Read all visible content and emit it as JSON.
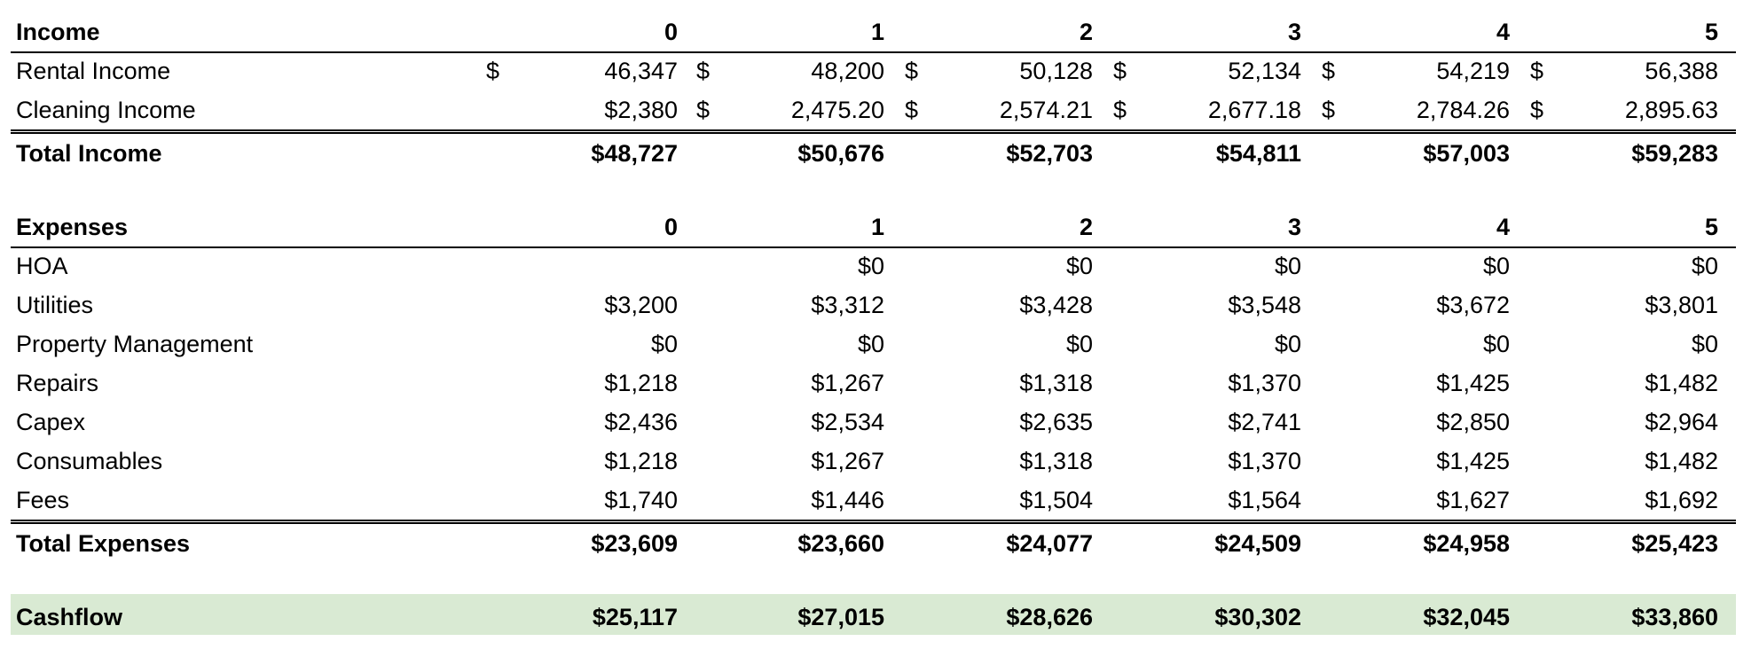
{
  "income": {
    "title": "Income",
    "years": [
      "0",
      "1",
      "2",
      "3",
      "4",
      "5"
    ],
    "rows": [
      {
        "label": "Rental Income",
        "values": [
          {
            "d": "$",
            "v": "46,347"
          },
          {
            "d": "$",
            "v": "48,200"
          },
          {
            "d": "$",
            "v": "50,128"
          },
          {
            "d": "$",
            "v": "52,134"
          },
          {
            "d": "$",
            "v": "54,219"
          },
          {
            "d": "$",
            "v": "56,388"
          }
        ]
      },
      {
        "label": "Cleaning Income",
        "values": [
          {
            "d": "",
            "v": "$2,380"
          },
          {
            "d": "$",
            "v": "2,475.20"
          },
          {
            "d": "$",
            "v": "2,574.21"
          },
          {
            "d": "$",
            "v": "2,677.18"
          },
          {
            "d": "$",
            "v": "2,784.26"
          },
          {
            "d": "$",
            "v": "2,895.63"
          }
        ]
      }
    ],
    "total": {
      "label": "Total Income",
      "values": [
        "$48,727",
        "$50,676",
        "$52,703",
        "$54,811",
        "$57,003",
        "$59,283"
      ]
    }
  },
  "expenses": {
    "title": "Expenses",
    "years": [
      "0",
      "1",
      "2",
      "3",
      "4",
      "5"
    ],
    "rows": [
      {
        "label": "HOA",
        "values": [
          "",
          "$0",
          "$0",
          "$0",
          "$0",
          "$0"
        ]
      },
      {
        "label": "Utilities",
        "values": [
          "$3,200",
          "$3,312",
          "$3,428",
          "$3,548",
          "$3,672",
          "$3,801"
        ]
      },
      {
        "label": "Property Management",
        "values": [
          "$0",
          "$0",
          "$0",
          "$0",
          "$0",
          "$0"
        ]
      },
      {
        "label": "Repairs",
        "values": [
          "$1,218",
          "$1,267",
          "$1,318",
          "$1,370",
          "$1,425",
          "$1,482"
        ]
      },
      {
        "label": "Capex",
        "values": [
          "$2,436",
          "$2,534",
          "$2,635",
          "$2,741",
          "$2,850",
          "$2,964"
        ]
      },
      {
        "label": "Consumables",
        "values": [
          "$1,218",
          "$1,267",
          "$1,318",
          "$1,370",
          "$1,425",
          "$1,482"
        ]
      },
      {
        "label": "Fees",
        "values": [
          "$1,740",
          "$1,446",
          "$1,504",
          "$1,564",
          "$1,627",
          "$1,692"
        ]
      }
    ],
    "total": {
      "label": "Total Expenses",
      "values": [
        "$23,609",
        "$23,660",
        "$24,077",
        "$24,509",
        "$24,958",
        "$25,423"
      ]
    }
  },
  "cashflow": {
    "label": "Cashflow",
    "values": [
      "$25,117",
      "$27,015",
      "$28,626",
      "$30,302",
      "$32,045",
      "$33,860"
    ],
    "highlight_color": "#d9ead3"
  }
}
